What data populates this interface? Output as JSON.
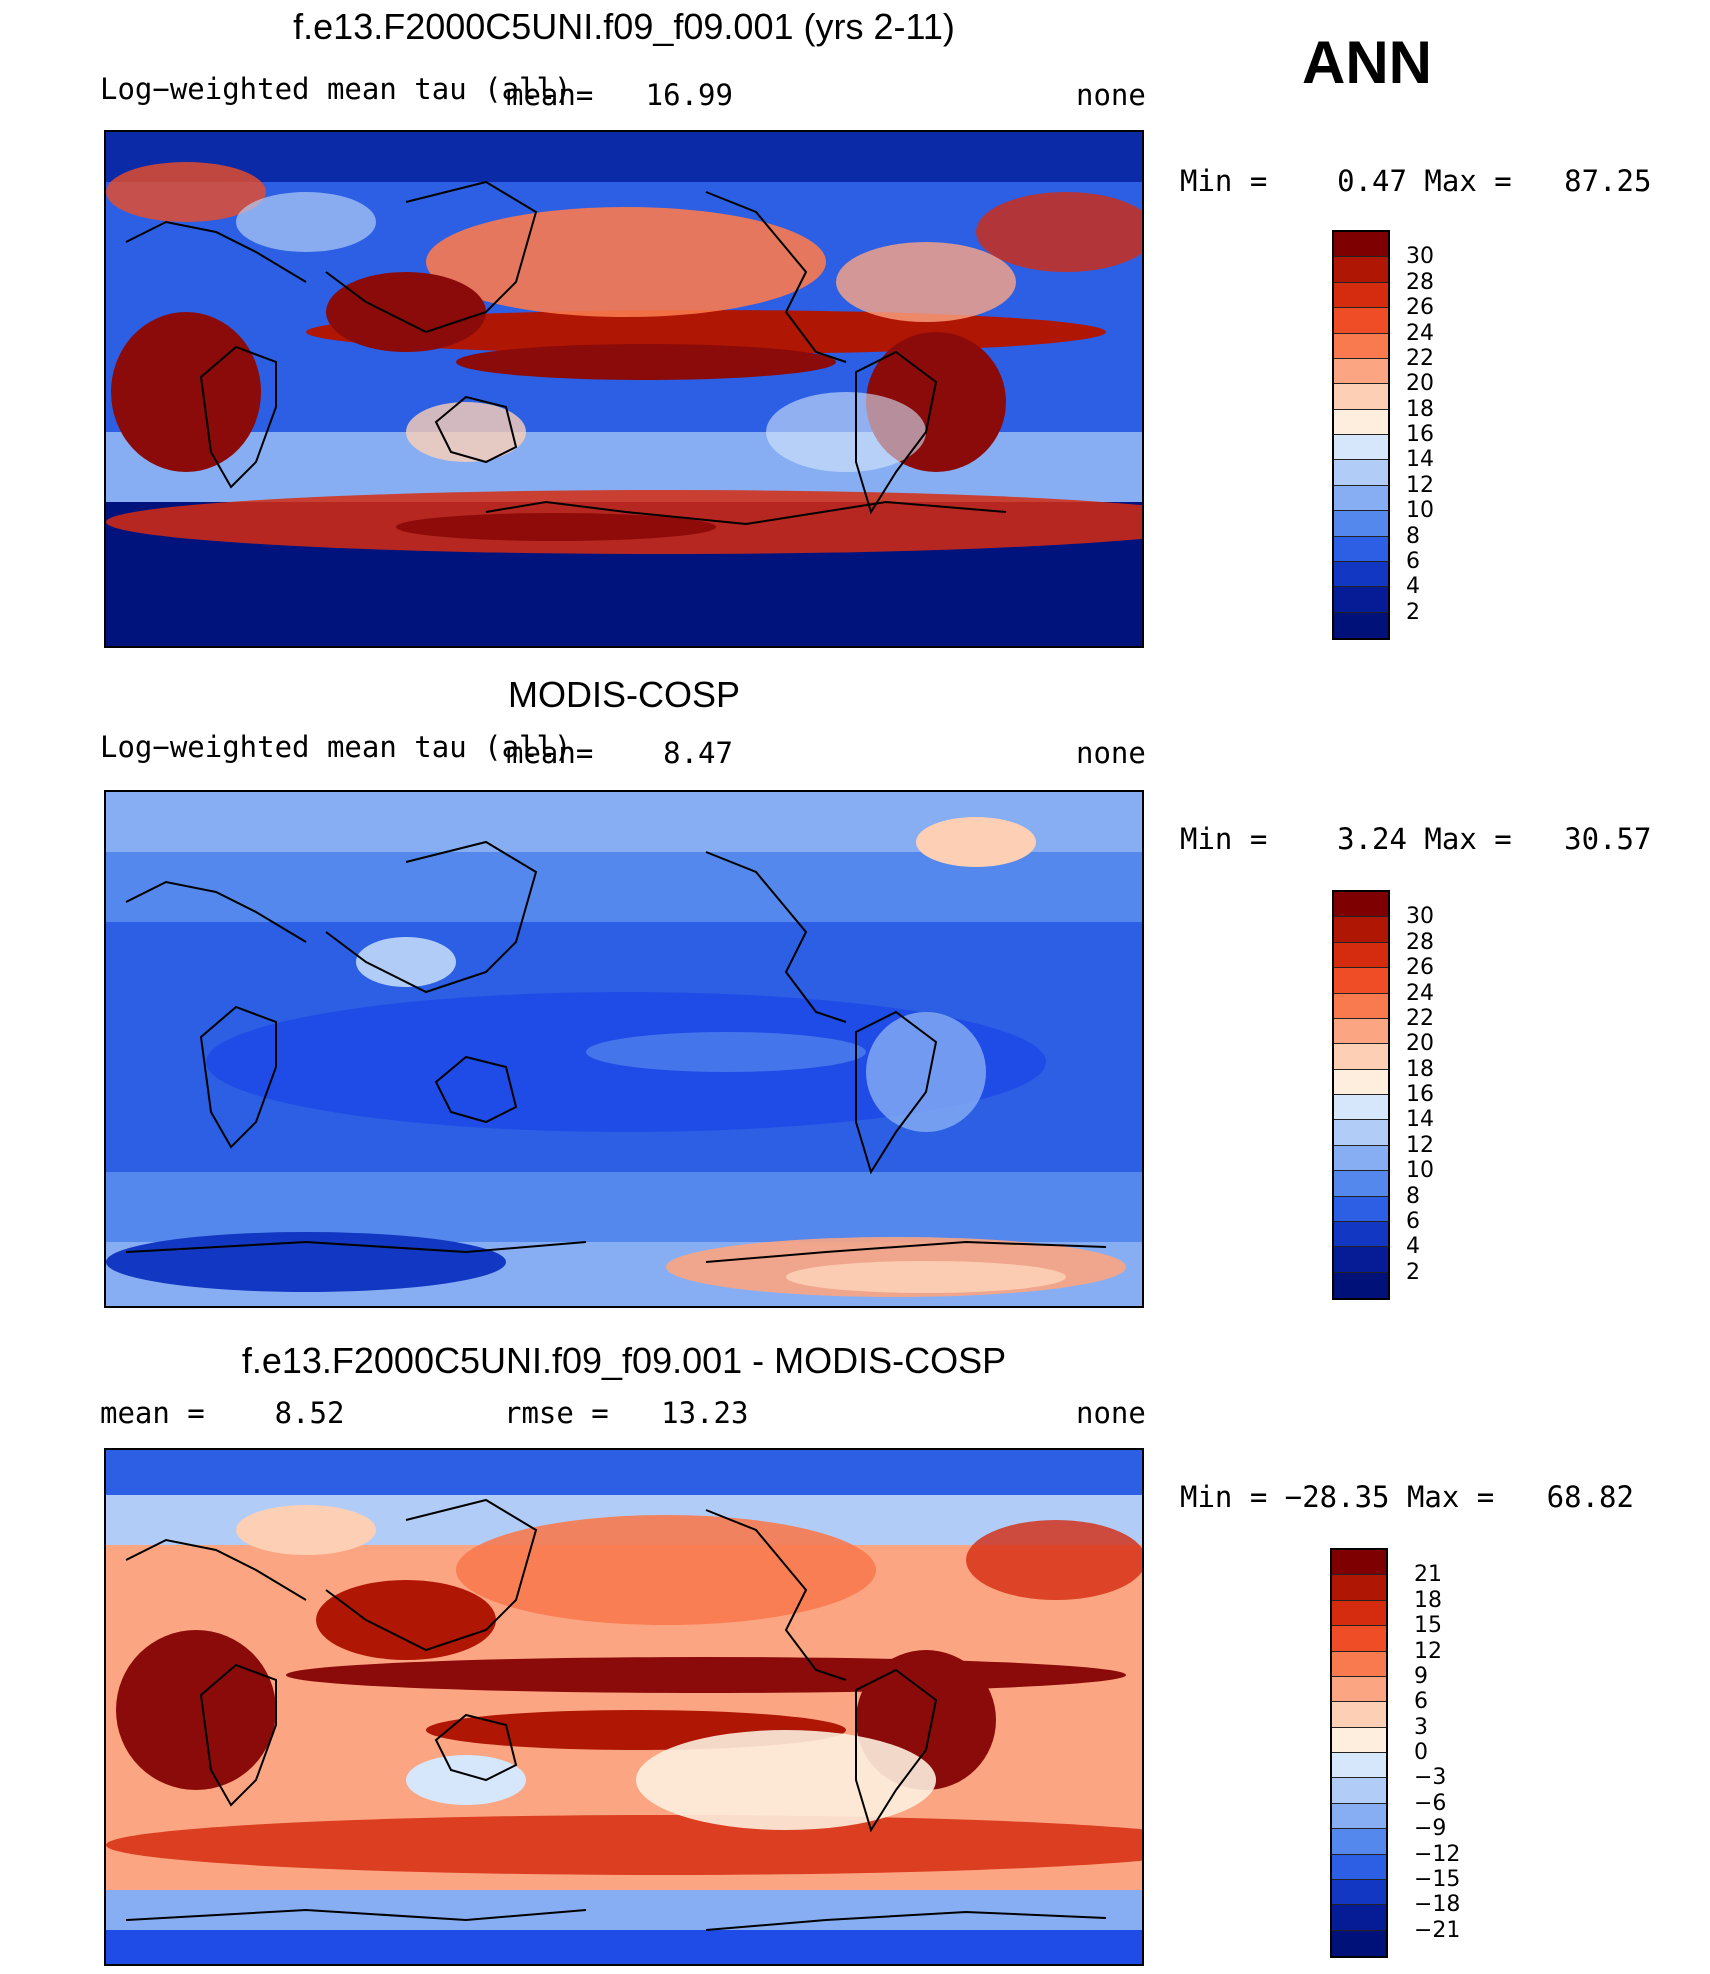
{
  "season_label": "ANN",
  "colors": {
    "deep_blue": "#00137d",
    "mid_blue": "#1f4ce6",
    "light_blue": "#8fb6f7",
    "pale": "#fde0c8",
    "orange": "#f06a3a",
    "dark_red": "#8b0a0a",
    "coast": "#000000"
  },
  "panels": [
    {
      "title": "f.e13.F2000C5UNI.f09_f09.001 (yrs 2-11)",
      "left_text": "Log−weighted mean tau (all)",
      "mean_text": "mean=   16.99",
      "right_text": "none",
      "stats_text": "Min =    0.47 Max =   87.25",
      "colorbar_ticks": [
        "30",
        "28",
        "26",
        "24",
        "22",
        "20",
        "18",
        "16",
        "14",
        "12",
        "10",
        "8",
        "6",
        "4",
        "2"
      ],
      "colorbar_colors": [
        "#7f0000",
        "#b01604",
        "#d52b0f",
        "#ee4d26",
        "#f87a4e",
        "#fca582",
        "#fdd0b6",
        "#fdeede",
        "#d6e6fb",
        "#b1cdf7",
        "#87aef2",
        "#5588ec",
        "#2c5fe4",
        "#1237c2",
        "#061b96",
        "#00117a"
      ]
    },
    {
      "title": "MODIS-COSP",
      "left_text": "Log−weighted mean tau (all)",
      "mean_text": "mean=    8.47",
      "right_text": "none",
      "stats_text": "Min =    3.24 Max =   30.57",
      "colorbar_ticks": [
        "30",
        "28",
        "26",
        "24",
        "22",
        "20",
        "18",
        "16",
        "14",
        "12",
        "10",
        "8",
        "6",
        "4",
        "2"
      ],
      "colorbar_colors": [
        "#7f0000",
        "#b01604",
        "#d52b0f",
        "#ee4d26",
        "#f87a4e",
        "#fca582",
        "#fdd0b6",
        "#fdeede",
        "#d6e6fb",
        "#b1cdf7",
        "#87aef2",
        "#5588ec",
        "#2c5fe4",
        "#1237c2",
        "#061b96",
        "#00117a"
      ]
    },
    {
      "title": "f.e13.F2000C5UNI.f09_f09.001 - MODIS-COSP",
      "left_text": "mean =    8.52",
      "mean_text": "rmse =   13.23",
      "right_text": "none",
      "stats_text": "Min = −28.35 Max =   68.82",
      "colorbar_ticks": [
        "21",
        "18",
        "15",
        "12",
        "9",
        "6",
        "3",
        "0",
        "−3",
        "−6",
        "−9",
        "−12",
        "−15",
        "−18",
        "−21"
      ],
      "colorbar_colors": [
        "#7f0000",
        "#b01604",
        "#d52b0f",
        "#ee4d26",
        "#f87a4e",
        "#fca582",
        "#fdd0b6",
        "#fdeede",
        "#d6e6fb",
        "#b1cdf7",
        "#87aef2",
        "#5588ec",
        "#2c5fe4",
        "#1237c2",
        "#061b96",
        "#00117a"
      ]
    }
  ]
}
